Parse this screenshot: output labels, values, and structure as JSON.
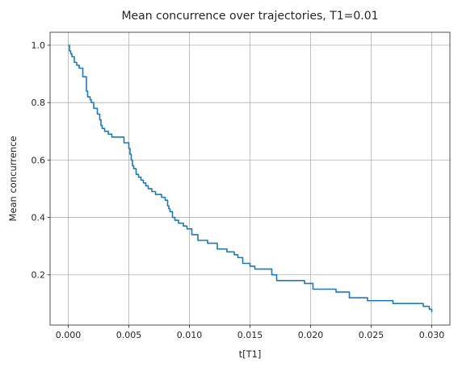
{
  "chart_data": {
    "type": "line",
    "title": "Mean concurrence over trajectories, T1=0.01",
    "xlabel": "t[T1]",
    "ylabel": "Mean concurrence",
    "xlim": [
      -0.0015,
      0.0315
    ],
    "ylim": [
      0.025,
      1.045
    ],
    "x_ticks": [
      0.0,
      0.005,
      0.01,
      0.015,
      0.02,
      0.025,
      0.03
    ],
    "x_tick_labels": [
      "0.000",
      "0.005",
      "0.010",
      "0.015",
      "0.020",
      "0.025",
      "0.030"
    ],
    "y_ticks": [
      0.2,
      0.4,
      0.6,
      0.8,
      1.0
    ],
    "y_tick_labels": [
      "0.2",
      "0.4",
      "0.6",
      "0.8",
      "1.0"
    ],
    "grid": true,
    "step": true,
    "color": "#1f77b4",
    "series": [
      {
        "x": [
          0.0,
          0.0001,
          0.0002,
          0.0003,
          0.0005,
          0.0007,
          0.0009,
          0.0012,
          0.0015,
          0.0016,
          0.0018,
          0.0019,
          0.0021,
          0.0024,
          0.0026,
          0.0027,
          0.0028,
          0.003,
          0.0033,
          0.0036,
          0.0039,
          0.0046,
          0.005,
          0.0051,
          0.0052,
          0.0053,
          0.0054,
          0.0056,
          0.0058,
          0.006,
          0.0062,
          0.0064,
          0.0066,
          0.0069,
          0.0072,
          0.0077,
          0.008,
          0.0082,
          0.0083,
          0.0084,
          0.0086,
          0.0088,
          0.0091,
          0.0095,
          0.0098,
          0.0102,
          0.0107,
          0.0115,
          0.0123,
          0.0131,
          0.0137,
          0.014,
          0.0144,
          0.015,
          0.0154,
          0.0168,
          0.0172,
          0.0195,
          0.0202,
          0.0221,
          0.0232,
          0.0247,
          0.0268,
          0.0293,
          0.0298,
          0.03
        ],
        "y": [
          1.0,
          0.98,
          0.97,
          0.96,
          0.94,
          0.93,
          0.92,
          0.89,
          0.84,
          0.82,
          0.81,
          0.8,
          0.78,
          0.76,
          0.74,
          0.72,
          0.71,
          0.7,
          0.69,
          0.68,
          0.68,
          0.66,
          0.64,
          0.62,
          0.6,
          0.58,
          0.57,
          0.55,
          0.54,
          0.53,
          0.52,
          0.51,
          0.5,
          0.49,
          0.48,
          0.47,
          0.46,
          0.44,
          0.43,
          0.42,
          0.4,
          0.39,
          0.38,
          0.37,
          0.36,
          0.34,
          0.32,
          0.31,
          0.29,
          0.28,
          0.27,
          0.26,
          0.24,
          0.23,
          0.22,
          0.2,
          0.18,
          0.17,
          0.15,
          0.14,
          0.12,
          0.11,
          0.1,
          0.09,
          0.08,
          0.07
        ]
      }
    ]
  }
}
